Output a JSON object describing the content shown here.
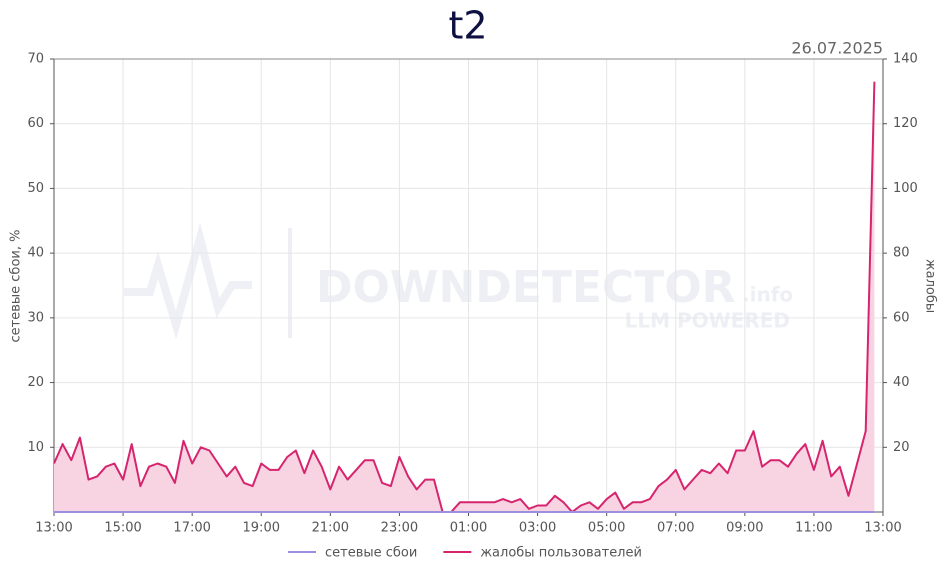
{
  "chart_data": {
    "type": "line",
    "title": "t2",
    "subtitle": "26.07.2025",
    "y_label": "сетевые сбои, %",
    "y2_label": "жалобы",
    "watermark": [
      "DOWNDETECTOR",
      ".info",
      "LLM POWERED"
    ],
    "x": [
      0,
      0.25,
      0.5,
      0.75,
      1,
      1.25,
      1.5,
      1.75,
      2,
      2.25,
      2.5,
      2.75,
      3,
      3.25,
      3.5,
      3.75,
      4,
      4.25,
      4.5,
      4.75,
      5,
      5.25,
      5.5,
      5.75,
      6,
      6.25,
      6.5,
      6.75,
      7,
      7.25,
      7.5,
      7.75,
      8,
      8.25,
      8.5,
      8.75,
      9,
      9.25,
      9.5,
      9.75,
      10,
      10.25,
      10.5,
      10.75,
      11,
      11.25,
      11.5,
      11.75,
      12,
      12.25,
      12.5,
      12.75,
      13,
      13.25,
      13.5,
      13.75,
      14,
      14.25,
      14.5,
      14.75,
      15,
      15.25,
      15.5,
      15.75,
      16,
      16.25,
      16.5,
      16.75,
      17,
      17.25,
      17.5,
      17.75,
      18,
      18.25,
      18.5,
      18.75,
      19,
      19.25,
      19.5,
      19.75,
      20,
      20.25,
      20.5,
      20.75,
      21,
      21.25,
      21.5,
      21.75,
      22,
      22.25,
      22.5,
      22.75,
      23,
      23.25,
      23.5,
      23.75
    ],
    "xlim": [
      0,
      24
    ],
    "xticks": [
      {
        "value": 0,
        "label": "13:00"
      },
      {
        "value": 2,
        "label": "15:00"
      },
      {
        "value": 4,
        "label": "17:00"
      },
      {
        "value": 6,
        "label": "19:00"
      },
      {
        "value": 8,
        "label": "21:00"
      },
      {
        "value": 10,
        "label": "23:00"
      },
      {
        "value": 12,
        "label": "01:00"
      },
      {
        "value": 14,
        "label": "03:00"
      },
      {
        "value": 16,
        "label": "05:00"
      },
      {
        "value": 18,
        "label": "07:00"
      },
      {
        "value": 20,
        "label": "09:00"
      },
      {
        "value": 22,
        "label": "11:00"
      },
      {
        "value": 24,
        "label": "13:00"
      }
    ],
    "ylim": [
      0,
      70
    ],
    "yticks": [
      10,
      20,
      30,
      40,
      50,
      60,
      70
    ],
    "y2lim": [
      0,
      140
    ],
    "y2ticks": [
      20,
      40,
      60,
      80,
      100,
      120,
      140
    ],
    "grid": true,
    "legend": "bottom",
    "series": [
      {
        "name": "сетевые сбои",
        "color": "#9b8fe0",
        "values": [
          0,
          0,
          0,
          0,
          0,
          0,
          0,
          0,
          0,
          0,
          0,
          0,
          0,
          0,
          0,
          0,
          0,
          0,
          0,
          0,
          0,
          0,
          0,
          0,
          0,
          0,
          0,
          0,
          0,
          0,
          0,
          0,
          0,
          0,
          0,
          0,
          0,
          0,
          0,
          0,
          0,
          0,
          0,
          0,
          0,
          0,
          0,
          0,
          0,
          0,
          0,
          0,
          0,
          0,
          0,
          0,
          0,
          0,
          0,
          0,
          0,
          0,
          0,
          0,
          0,
          0,
          0,
          0,
          0,
          0,
          0,
          0,
          0,
          0,
          0,
          0,
          0,
          0,
          0,
          0,
          0,
          0,
          0,
          0,
          0,
          0,
          0,
          0,
          0,
          0,
          0,
          0,
          0,
          0,
          0,
          0
        ]
      },
      {
        "name": "жалобы пользователей",
        "color": "#d6246e",
        "fill": "#f8d3e2",
        "axis": "y2",
        "values": [
          15,
          21,
          16,
          23,
          10,
          11,
          14,
          15,
          10,
          21,
          8,
          14,
          15,
          14,
          9,
          22,
          15,
          20,
          19,
          15,
          11,
          14,
          9,
          8,
          15,
          13,
          13,
          17,
          19,
          12,
          19,
          14,
          7,
          14,
          10,
          13,
          16,
          16,
          9,
          8,
          17,
          11,
          7,
          10,
          10,
          0,
          0,
          3,
          3,
          3,
          3,
          3,
          4,
          3,
          4,
          1,
          2,
          2,
          5,
          3,
          0,
          2,
          3,
          1,
          4,
          6,
          1,
          3,
          3,
          4,
          8,
          10,
          13,
          7,
          10,
          13,
          12,
          15,
          12,
          19,
          19,
          25,
          14,
          16,
          16,
          14,
          18,
          21,
          13,
          22,
          11,
          14,
          5,
          15,
          25,
          133
        ]
      }
    ]
  }
}
